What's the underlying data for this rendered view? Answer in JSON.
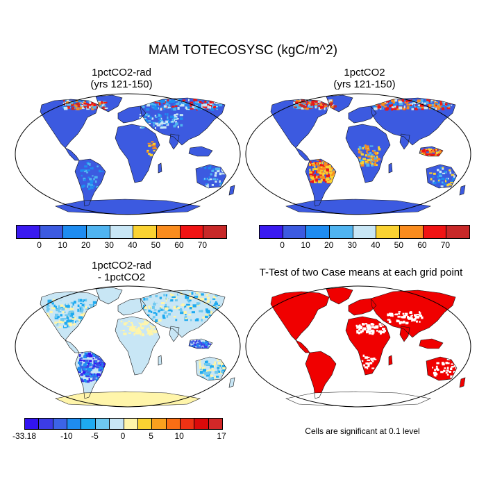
{
  "title": "MAM TOTECOSYSC (kgC/m^2)",
  "panels": [
    {
      "title_line1": "1pctCO2-rad",
      "title_line2": "(yrs 121-150)"
    },
    {
      "title_line1": "1pctCO2",
      "title_line2": "(yrs 121-150)"
    },
    {
      "title_line1": "1pctCO2-rad",
      "title_line2": "- 1pctCO2"
    },
    {
      "title_line1": "T-Test of two Case means at each grid point"
    }
  ],
  "colorbar_top": {
    "colors": [
      "#3a1af0",
      "#3c5ae0",
      "#1e8cf0",
      "#50b4f0",
      "#c8e6f5",
      "#fad232",
      "#fa8c1e",
      "#f01414",
      "#c82828"
    ],
    "labels": [
      "0",
      "10",
      "20",
      "30",
      "40",
      "50",
      "60",
      "70"
    ]
  },
  "colorbar_diff": {
    "colors": [
      "#3214f0",
      "#3c3ce6",
      "#3c64e6",
      "#1e8cf0",
      "#1eaaf0",
      "#6ec8f0",
      "#c8e6f5",
      "#fff5aa",
      "#fad232",
      "#faa01e",
      "#fa6e14",
      "#f03214",
      "#dc0a0a",
      "#d22828"
    ],
    "labels": [
      "-33.18",
      "-10",
      "-5",
      "0",
      "5",
      "10",
      "17"
    ]
  },
  "colors": {
    "ocean": "#ffffff",
    "land_base": "#3c5ae0",
    "diff_base": "#c8e6f5",
    "significant": "#f00000",
    "antarctica_diff": "#fff5aa"
  },
  "note": "Cells are significant at 0.1 level"
}
